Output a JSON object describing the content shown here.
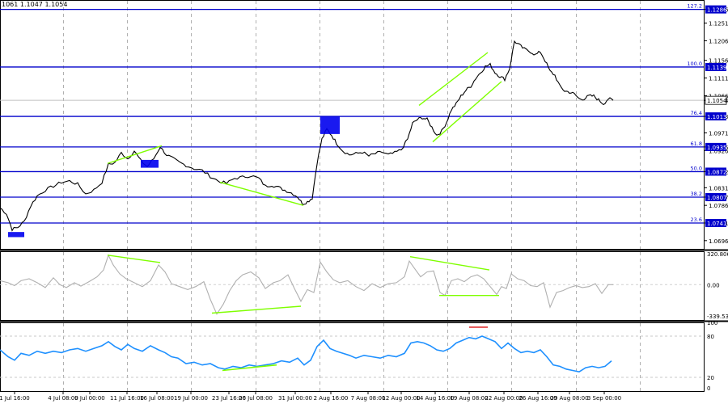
{
  "header": {
    "ohlc": "1061 1.1047 1.1054"
  },
  "chart_data": {
    "type": "candlestick",
    "symbol_quote": "1.1054",
    "price_axis": {
      "range": [
        1.0675,
        1.131
      ],
      "ticks": [
        "1.1286",
        "1.1251",
        "1.1206",
        "1.1156",
        "1.1111",
        "1.1066",
        "1.1054",
        "1.1013",
        "1.0971",
        "1.0935",
        "1.0926",
        "1.0872",
        "1.0831",
        "1.0807",
        "1.0786",
        "1.0741",
        "1.0696"
      ]
    },
    "fib_levels": [
      {
        "label": "127.2",
        "value": 1.1286
      },
      {
        "label": "100.0",
        "value": 1.1139
      },
      {
        "label": "76.4",
        "value": 1.1013
      },
      {
        "label": "61.8",
        "value": 1.0935
      },
      {
        "label": "50.0",
        "value": 1.0872
      },
      {
        "label": "38.2",
        "value": 1.0807
      },
      {
        "label": "23.6",
        "value": 1.0741
      }
    ],
    "price_path": [
      [
        0,
        1.078
      ],
      [
        8,
        1.0765
      ],
      [
        15,
        1.0725
      ],
      [
        22,
        1.073
      ],
      [
        30,
        1.0745
      ],
      [
        38,
        1.0785
      ],
      [
        46,
        1.081
      ],
      [
        56,
        1.0825
      ],
      [
        66,
        1.0835
      ],
      [
        76,
        1.0845
      ],
      [
        86,
        1.0848
      ],
      [
        96,
        1.084
      ],
      [
        106,
        1.0815
      ],
      [
        116,
        1.0825
      ],
      [
        126,
        1.0845
      ],
      [
        134,
        1.089
      ],
      [
        142,
        1.0895
      ],
      [
        150,
        1.092
      ],
      [
        158,
        1.0905
      ],
      [
        166,
        1.0925
      ],
      [
        174,
        1.09
      ],
      [
        182,
        1.0885
      ],
      [
        190,
        1.0905
      ],
      [
        198,
        1.0935
      ],
      [
        206,
        1.0915
      ],
      [
        214,
        1.0905
      ],
      [
        222,
        1.0895
      ],
      [
        230,
        1.0888
      ],
      [
        240,
        1.088
      ],
      [
        250,
        1.0875
      ],
      [
        260,
        1.086
      ],
      [
        270,
        1.0848
      ],
      [
        280,
        1.0842
      ],
      [
        290,
        1.0855
      ],
      [
        300,
        1.0858
      ],
      [
        310,
        1.0862
      ],
      [
        320,
        1.0855
      ],
      [
        328,
        1.0835
      ],
      [
        336,
        1.0838
      ],
      [
        344,
        1.0832
      ],
      [
        352,
        1.0825
      ],
      [
        360,
        1.0818
      ],
      [
        368,
        1.0808
      ],
      [
        374,
        1.079
      ],
      [
        380,
        1.0795
      ],
      [
        386,
        1.0805
      ],
      [
        392,
        1.0895
      ],
      [
        398,
        1.0955
      ],
      [
        404,
        1.098
      ],
      [
        410,
        1.0965
      ],
      [
        416,
        1.0945
      ],
      [
        424,
        1.0925
      ],
      [
        432,
        1.0915
      ],
      [
        440,
        1.0918
      ],
      [
        448,
        1.0922
      ],
      [
        456,
        1.0912
      ],
      [
        464,
        1.0918
      ],
      [
        472,
        1.0922
      ],
      [
        480,
        1.0915
      ],
      [
        488,
        1.092
      ],
      [
        496,
        1.0928
      ],
      [
        504,
        1.0955
      ],
      [
        510,
        1.0995
      ],
      [
        516,
        1.1005
      ],
      [
        522,
        1.101
      ],
      [
        528,
        1.1005
      ],
      [
        534,
        1.0985
      ],
      [
        540,
        1.0965
      ],
      [
        546,
        1.0975
      ],
      [
        552,
        1.0998
      ],
      [
        558,
        1.103
      ],
      [
        564,
        1.1045
      ],
      [
        570,
        1.1065
      ],
      [
        576,
        1.108
      ],
      [
        582,
        1.109
      ],
      [
        588,
        1.111
      ],
      [
        594,
        1.1125
      ],
      [
        600,
        1.114
      ],
      [
        606,
        1.1145
      ],
      [
        612,
        1.1125
      ],
      [
        618,
        1.1115
      ],
      [
        624,
        1.1108
      ],
      [
        630,
        1.1135
      ],
      [
        636,
        1.1205
      ],
      [
        642,
        1.1195
      ],
      [
        648,
        1.1185
      ],
      [
        656,
        1.1178
      ],
      [
        662,
        1.117
      ],
      [
        668,
        1.1178
      ],
      [
        674,
        1.1155
      ],
      [
        680,
        1.1128
      ],
      [
        686,
        1.1118
      ],
      [
        692,
        1.109
      ],
      [
        698,
        1.1078
      ],
      [
        704,
        1.1075
      ],
      [
        710,
        1.107
      ],
      [
        716,
        1.1058
      ],
      [
        722,
        1.1058
      ],
      [
        728,
        1.1065
      ],
      [
        734,
        1.1065
      ],
      [
        740,
        1.1055
      ],
      [
        746,
        1.1045
      ],
      [
        752,
        1.1058
      ],
      [
        758,
        1.1054
      ]
    ],
    "trend_lines": [
      {
        "x": [
          133,
          200
        ],
        "y": [
          1.0893,
          1.0938
        ]
      },
      {
        "x": [
          272,
          375
        ],
        "y": [
          1.0845,
          1.0786
        ]
      },
      {
        "x": [
          518,
          603
        ],
        "y": [
          1.1041,
          1.1176
        ]
      },
      {
        "x": [
          535,
          620
        ],
        "y": [
          1.0948,
          1.1102
        ]
      }
    ],
    "boxes": [
      {
        "x": [
          10,
          30
        ],
        "y": [
          1.0718,
          1.0705
        ]
      },
      {
        "x": [
          174,
          196
        ],
        "y": [
          1.0902,
          1.0882
        ]
      },
      {
        "x": [
          396,
          420
        ],
        "y": [
          1.1012,
          1.0968
        ]
      }
    ],
    "cci": {
      "axis_labels": [
        "320.8062",
        "0.00",
        "-339.532"
      ],
      "range": [
        -360,
        340
      ],
      "path": [
        [
          0,
          40
        ],
        [
          10,
          20
        ],
        [
          18,
          -10
        ],
        [
          26,
          40
        ],
        [
          36,
          60
        ],
        [
          46,
          20
        ],
        [
          56,
          -30
        ],
        [
          66,
          70
        ],
        [
          74,
          0
        ],
        [
          82,
          -30
        ],
        [
          92,
          20
        ],
        [
          100,
          -15
        ],
        [
          110,
          30
        ],
        [
          120,
          80
        ],
        [
          128,
          150
        ],
        [
          134,
          300
        ],
        [
          140,
          200
        ],
        [
          148,
          110
        ],
        [
          156,
          60
        ],
        [
          166,
          20
        ],
        [
          176,
          -20
        ],
        [
          186,
          40
        ],
        [
          196,
          200
        ],
        [
          204,
          130
        ],
        [
          212,
          10
        ],
        [
          222,
          -20
        ],
        [
          232,
          -50
        ],
        [
          242,
          -20
        ],
        [
          252,
          30
        ],
        [
          260,
          -150
        ],
        [
          268,
          -300
        ],
        [
          276,
          -200
        ],
        [
          284,
          -60
        ],
        [
          292,
          40
        ],
        [
          300,
          100
        ],
        [
          310,
          130
        ],
        [
          320,
          70
        ],
        [
          328,
          -40
        ],
        [
          338,
          20
        ],
        [
          346,
          40
        ],
        [
          356,
          100
        ],
        [
          364,
          -40
        ],
        [
          372,
          -170
        ],
        [
          380,
          -50
        ],
        [
          388,
          -80
        ],
        [
          396,
          230
        ],
        [
          404,
          130
        ],
        [
          412,
          50
        ],
        [
          420,
          20
        ],
        [
          430,
          40
        ],
        [
          440,
          -20
        ],
        [
          450,
          -60
        ],
        [
          460,
          10
        ],
        [
          470,
          -30
        ],
        [
          480,
          10
        ],
        [
          490,
          20
        ],
        [
          500,
          80
        ],
        [
          506,
          240
        ],
        [
          512,
          170
        ],
        [
          520,
          80
        ],
        [
          528,
          130
        ],
        [
          536,
          140
        ],
        [
          544,
          -80
        ],
        [
          550,
          -110
        ],
        [
          558,
          40
        ],
        [
          566,
          60
        ],
        [
          574,
          30
        ],
        [
          582,
          80
        ],
        [
          590,
          100
        ],
        [
          598,
          60
        ],
        [
          606,
          -20
        ],
        [
          614,
          -100
        ],
        [
          620,
          -20
        ],
        [
          626,
          -40
        ],
        [
          632,
          110
        ],
        [
          640,
          60
        ],
        [
          648,
          40
        ],
        [
          656,
          -10
        ],
        [
          664,
          -20
        ],
        [
          672,
          20
        ],
        [
          680,
          -230
        ],
        [
          688,
          -80
        ],
        [
          696,
          -60
        ],
        [
          704,
          -30
        ],
        [
          712,
          -10
        ],
        [
          720,
          -30
        ],
        [
          728,
          -20
        ],
        [
          736,
          10
        ],
        [
          744,
          -90
        ],
        [
          752,
          0
        ],
        [
          758,
          0
        ]
      ],
      "trend_lines": [
        {
          "x": [
            133,
            198
          ],
          "y": [
            300,
            225
          ]
        },
        {
          "x": [
            262,
            372
          ],
          "y": [
            -290,
            -220
          ]
        },
        {
          "x": [
            507,
            605
          ],
          "y": [
            285,
            150
          ]
        },
        {
          "x": [
            543,
            617
          ],
          "y": [
            -110,
            -110
          ]
        }
      ]
    },
    "rsi": {
      "axis_labels": [
        "100",
        "80",
        "20",
        "0"
      ],
      "range": [
        0,
        100
      ],
      "levels": [
        80,
        20
      ],
      "path": [
        [
          0,
          60
        ],
        [
          10,
          50
        ],
        [
          18,
          45
        ],
        [
          26,
          55
        ],
        [
          36,
          52
        ],
        [
          46,
          58
        ],
        [
          56,
          55
        ],
        [
          66,
          58
        ],
        [
          76,
          56
        ],
        [
          86,
          60
        ],
        [
          96,
          62
        ],
        [
          106,
          58
        ],
        [
          116,
          62
        ],
        [
          126,
          66
        ],
        [
          134,
          72
        ],
        [
          142,
          65
        ],
        [
          150,
          60
        ],
        [
          158,
          68
        ],
        [
          166,
          62
        ],
        [
          176,
          58
        ],
        [
          186,
          66
        ],
        [
          196,
          60
        ],
        [
          204,
          56
        ],
        [
          212,
          50
        ],
        [
          220,
          48
        ],
        [
          230,
          40
        ],
        [
          240,
          42
        ],
        [
          250,
          38
        ],
        [
          260,
          40
        ],
        [
          270,
          34
        ],
        [
          278,
          32
        ],
        [
          288,
          36
        ],
        [
          298,
          34
        ],
        [
          308,
          38
        ],
        [
          318,
          36
        ],
        [
          328,
          38
        ],
        [
          338,
          40
        ],
        [
          348,
          44
        ],
        [
          358,
          42
        ],
        [
          368,
          48
        ],
        [
          376,
          38
        ],
        [
          384,
          45
        ],
        [
          392,
          65
        ],
        [
          400,
          74
        ],
        [
          408,
          62
        ],
        [
          416,
          58
        ],
        [
          424,
          55
        ],
        [
          432,
          52
        ],
        [
          440,
          48
        ],
        [
          450,
          52
        ],
        [
          460,
          50
        ],
        [
          470,
          48
        ],
        [
          480,
          52
        ],
        [
          490,
          50
        ],
        [
          500,
          55
        ],
        [
          508,
          70
        ],
        [
          516,
          72
        ],
        [
          524,
          70
        ],
        [
          532,
          66
        ],
        [
          540,
          60
        ],
        [
          548,
          58
        ],
        [
          556,
          62
        ],
        [
          564,
          70
        ],
        [
          572,
          74
        ],
        [
          580,
          78
        ],
        [
          588,
          76
        ],
        [
          596,
          80
        ],
        [
          604,
          76
        ],
        [
          612,
          72
        ],
        [
          620,
          62
        ],
        [
          628,
          70
        ],
        [
          636,
          62
        ],
        [
          644,
          56
        ],
        [
          652,
          58
        ],
        [
          660,
          56
        ],
        [
          668,
          60
        ],
        [
          676,
          50
        ],
        [
          684,
          38
        ],
        [
          692,
          36
        ],
        [
          700,
          32
        ],
        [
          708,
          30
        ],
        [
          716,
          28
        ],
        [
          724,
          34
        ],
        [
          732,
          36
        ],
        [
          740,
          34
        ],
        [
          748,
          36
        ],
        [
          756,
          44
        ]
      ],
      "trend_lines": [
        {
          "x": [
            275,
            342
          ],
          "y": [
            30,
            38
          ]
        },
        {
          "x": [
            580,
            603
          ],
          "y": [
            93,
            93
          ]
        }
      ]
    },
    "time_labels": [
      "1 Jul 16:00",
      "4 Jul 08:00",
      "9 Jul 00:00",
      "11 Jul 16:00",
      "16 Jul 08:00",
      "19 Jul 00:00",
      "23 Jul 16:00",
      "26 Jul 08:00",
      "31 Jul 00:00",
      "2 Aug 16:00",
      "7 Aug 08:00",
      "12 Aug 00:00",
      "14 Aug 16:00",
      "19 Aug 08:00",
      "22 Aug 00:00",
      "26 Aug 16:00",
      "29 Aug 08:00",
      "3 Sep 00:00"
    ],
    "colors": {
      "fib": "#0000cc",
      "trend": "#7fff00",
      "cci": "#b0b0b0",
      "rsi": "#1e90ff",
      "box": "#0000ee",
      "price": "#000000",
      "quote_bg": "#ffffff"
    }
  }
}
